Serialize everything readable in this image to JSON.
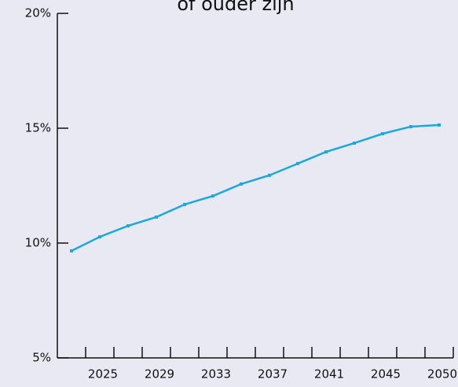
{
  "chart_data": {
    "type": "line",
    "title": "of ouder zijn",
    "categories": [
      null,
      "2025",
      null,
      "2029",
      null,
      "2033",
      null,
      "2037",
      null,
      "2041",
      null,
      "2045",
      null,
      "2050"
    ],
    "series": [
      {
        "color": "#1ba8e0",
        "values": [
          9.66,
          10.27,
          10.75,
          11.13,
          11.68,
          12.05,
          12.57,
          12.95,
          13.46,
          13.97,
          14.35,
          14.76,
          15.07,
          15.14
        ]
      }
    ],
    "ylim": [
      5,
      20
    ],
    "yticks": [
      {
        "value": 5,
        "label": "5%"
      },
      {
        "value": 10,
        "label": "10%"
      },
      {
        "value": 15,
        "label": "15%"
      },
      {
        "value": 20,
        "label": "20%"
      }
    ]
  }
}
